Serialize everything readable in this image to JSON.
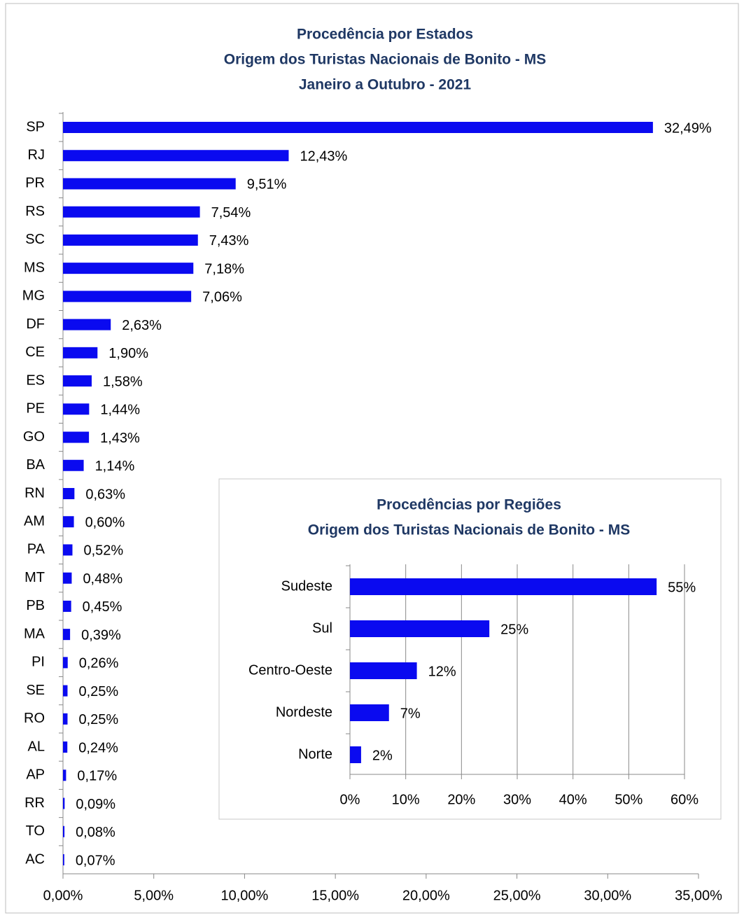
{
  "chart_data": [
    {
      "type": "hbar",
      "title": [
        "Procedência por Estados",
        "Origem dos Turistas Nacionais de Bonito - MS",
        "Janeiro a Outubro - 2021"
      ],
      "categories": [
        "SP",
        "RJ",
        "PR",
        "RS",
        "SC",
        "MS",
        "MG",
        "DF",
        "CE",
        "ES",
        "PE",
        "GO",
        "BA",
        "RN",
        "AM",
        "PA",
        "MT",
        "PB",
        "MA",
        "PI",
        "SE",
        "RO",
        "AL",
        "AP",
        "RR",
        "TO",
        "AC"
      ],
      "values": [
        32.49,
        12.43,
        9.51,
        7.54,
        7.43,
        7.18,
        7.06,
        2.63,
        1.9,
        1.58,
        1.44,
        1.43,
        1.14,
        0.63,
        0.6,
        0.52,
        0.48,
        0.45,
        0.39,
        0.26,
        0.25,
        0.25,
        0.24,
        0.17,
        0.09,
        0.08,
        0.07
      ],
      "value_labels": [
        "32,49%",
        "12,43%",
        "9,51%",
        "7,54%",
        "7,43%",
        "7,18%",
        "7,06%",
        "2,63%",
        "1,90%",
        "1,58%",
        "1,44%",
        "1,43%",
        "1,14%",
        "0,63%",
        "0,60%",
        "0,52%",
        "0,48%",
        "0,45%",
        "0,39%",
        "0,26%",
        "0,25%",
        "0,25%",
        "0,24%",
        "0,17%",
        "0,09%",
        "0,08%",
        "0,07%"
      ],
      "color": "#0a0af0",
      "xlim": [
        0,
        35
      ],
      "xticks": [
        {
          "value": 0,
          "label": "0,00%"
        },
        {
          "value": 5,
          "label": "5,00%"
        },
        {
          "value": 10,
          "label": "10,00%"
        },
        {
          "value": 15,
          "label": "15,00%"
        },
        {
          "value": 20,
          "label": "20,00%"
        },
        {
          "value": 25,
          "label": "25,00%"
        },
        {
          "value": 30,
          "label": "30,00%"
        },
        {
          "value": 35,
          "label": "35,00%"
        }
      ],
      "grid": false
    },
    {
      "type": "hbar",
      "title": [
        "Procedências por Regiões",
        "Origem dos Turistas Nacionais de Bonito - MS"
      ],
      "categories": [
        "Sudeste",
        "Sul",
        "Centro-Oeste",
        "Nordeste",
        "Norte"
      ],
      "values": [
        55,
        25,
        12,
        7,
        2
      ],
      "value_labels": [
        "55%",
        "25%",
        "12%",
        "7%",
        "2%"
      ],
      "color": "#0a0af0",
      "xlim": [
        0,
        60
      ],
      "xticks": [
        {
          "value": 0,
          "label": "0%"
        },
        {
          "value": 10,
          "label": "10%"
        },
        {
          "value": 20,
          "label": "20%"
        },
        {
          "value": 30,
          "label": "30%"
        },
        {
          "value": 40,
          "label": "40%"
        },
        {
          "value": 50,
          "label": "50%"
        },
        {
          "value": 60,
          "label": "60%"
        }
      ],
      "grid": true
    }
  ]
}
